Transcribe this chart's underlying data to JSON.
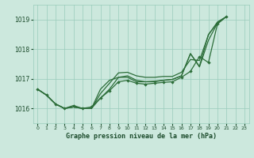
{
  "title": "Graphe pression niveau de la mer (hPa)",
  "bg_color": "#cce8dd",
  "plot_bg_color": "#cce8dd",
  "grid_color": "#99ccbb",
  "line_color": "#2d6e3a",
  "text_color": "#1a4a2a",
  "ylim": [
    1015.5,
    1019.5
  ],
  "xlim": [
    -0.5,
    23.5
  ],
  "yticks": [
    1016,
    1017,
    1018,
    1019
  ],
  "xtick_labels": [
    "0",
    "1",
    "2",
    "3",
    "4",
    "5",
    "6",
    "7",
    "8",
    "9",
    "10",
    "11",
    "12",
    "13",
    "14",
    "15",
    "16",
    "17",
    "18",
    "19",
    "20",
    "21",
    "22",
    "23"
  ],
  "series_marked": [
    1016.65,
    1016.45,
    1016.15,
    1016.0,
    1016.1,
    1016.0,
    1016.05,
    1016.35,
    1016.6,
    1016.9,
    1016.95,
    1016.85,
    1016.82,
    1016.85,
    1016.88,
    1016.9,
    1017.05,
    1017.25,
    1017.75,
    1017.55,
    1018.85,
    1019.1
  ],
  "series_smooth1": [
    1016.65,
    1016.45,
    1016.15,
    1016.0,
    1016.05,
    1016.0,
    1016.0,
    1016.35,
    1016.65,
    1017.05,
    1017.1,
    1016.95,
    1016.9,
    1016.92,
    1016.95,
    1016.98,
    1017.1,
    1017.85,
    1017.4,
    1018.3,
    1018.88,
    1019.1
  ],
  "series_smooth2": [
    1016.65,
    1016.45,
    1016.15,
    1016.0,
    1016.05,
    1016.0,
    1016.0,
    1016.5,
    1016.85,
    1017.2,
    1017.22,
    1017.1,
    1017.05,
    1017.05,
    1017.08,
    1017.08,
    1017.22,
    1017.65,
    1017.62,
    1018.48,
    1018.92,
    1019.1
  ],
  "series_smooth3": [
    1016.65,
    1016.45,
    1016.15,
    1016.0,
    1016.05,
    1016.0,
    1016.0,
    1016.65,
    1016.95,
    1017.05,
    1017.05,
    1016.9,
    1016.9,
    1016.9,
    1016.95,
    1016.98,
    1017.1,
    1017.85,
    1017.42,
    1018.5,
    1018.88,
    1019.1
  ]
}
